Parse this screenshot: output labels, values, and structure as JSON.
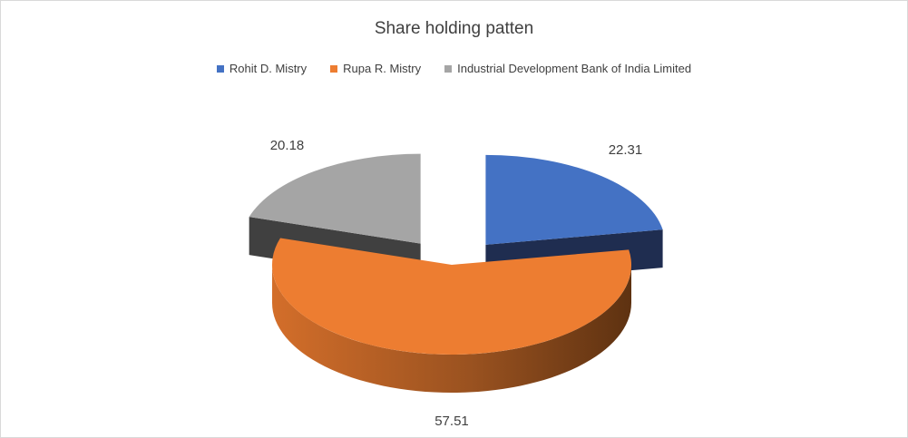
{
  "chart_data": {
    "type": "pie",
    "title": "Share holding patten",
    "series": [
      {
        "name": "Rohit D. Mistry",
        "value": 22.31,
        "color": "#4472c4",
        "side_color": "#1f2d50"
      },
      {
        "name": "Rupa R. Mistry",
        "value": 57.51,
        "color": "#ed7d31",
        "side_color": "#8a4a1a"
      },
      {
        "name": "Industrial Development Bank of India Limited",
        "value": 20.18,
        "color": "#a5a5a5",
        "side_color": "#404040"
      }
    ],
    "legend_position": "top",
    "style": "3d-exploded"
  }
}
